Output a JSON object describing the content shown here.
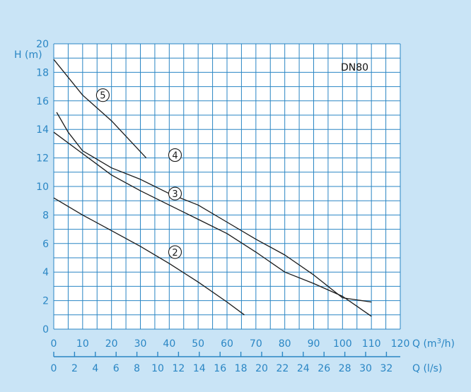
{
  "chart_data": {
    "type": "line",
    "ylabel": "H (m)",
    "xlabel": "Q (m³/h)",
    "xlabel_bottom": "Q (l/s)",
    "annotation": "DN80",
    "x_ticks": [
      "0",
      "10",
      "20",
      "30",
      "40",
      "50",
      "60",
      "70",
      "80",
      "90",
      "100",
      "110",
      "120"
    ],
    "x_ticks_bottom": [
      "0",
      "2",
      "4",
      "6",
      "8",
      "10",
      "12",
      "14",
      "16",
      "18",
      "20",
      "22",
      "24",
      "26",
      "28",
      "30",
      "32"
    ],
    "y_ticks": [
      "0",
      "2",
      "4",
      "6",
      "8",
      "10",
      "12",
      "14",
      "16",
      "18",
      "20"
    ],
    "xlim": [
      0,
      120
    ],
    "ylim": [
      0,
      20
    ],
    "grid": true,
    "series": [
      {
        "name": "2",
        "x": [
          0,
          10,
          20,
          30,
          40,
          50,
          60,
          66
        ],
        "y": [
          9.2,
          8.0,
          6.9,
          5.8,
          4.6,
          3.3,
          1.9,
          1.0
        ]
      },
      {
        "name": "3",
        "x": [
          0,
          10,
          20,
          30,
          40,
          50,
          60,
          70,
          80,
          90,
          100,
          110
        ],
        "y": [
          13.8,
          12.3,
          10.8,
          9.7,
          8.7,
          7.7,
          6.7,
          5.4,
          4.0,
          3.2,
          2.3,
          0.9
        ]
      },
      {
        "name": "4",
        "x": [
          1,
          5,
          10,
          20,
          30,
          40,
          50,
          60,
          70,
          80,
          90,
          100,
          110
        ],
        "y": [
          15.2,
          13.8,
          12.5,
          11.3,
          10.5,
          9.5,
          8.7,
          7.5,
          6.3,
          5.2,
          3.8,
          2.2,
          1.9
        ]
      },
      {
        "name": "5",
        "x": [
          0,
          10,
          20,
          32
        ],
        "y": [
          18.9,
          16.4,
          14.6,
          12.0
        ]
      }
    ],
    "colors": {
      "background": "#c9e4f6",
      "plot_bg": "#ffffff",
      "grid": "#2a86c4",
      "curve": "#1a1a1a",
      "label": "#2a86c4"
    }
  }
}
